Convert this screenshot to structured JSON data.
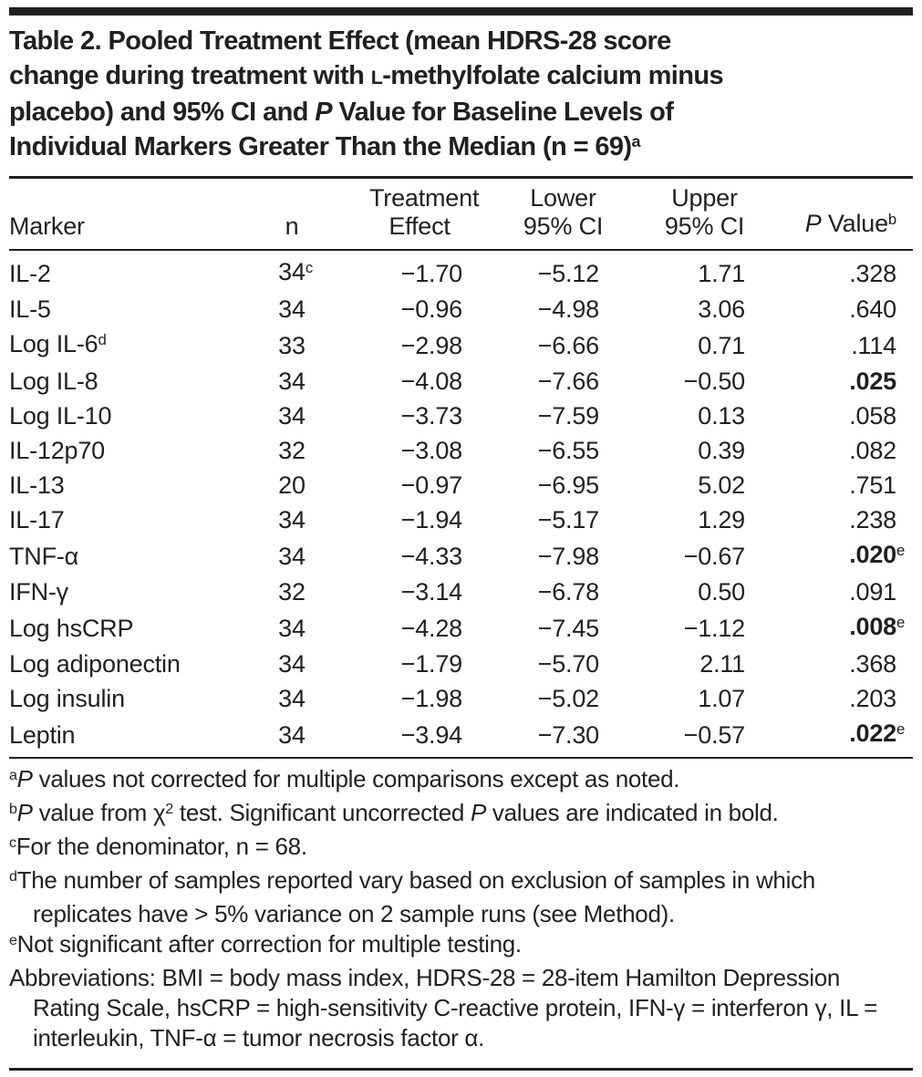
{
  "colors": {
    "text": "#231f20",
    "background": "#ffffff",
    "rule": "#231f20"
  },
  "title": {
    "line1": "Table 2. Pooled Treatment Effect (mean HDRS-28 score",
    "line2_pre": "change during treatment with ",
    "line2_smallcap": "L",
    "line2_post": "-methylfolate calcium minus",
    "line3_pre": "placebo) and 95% CI and ",
    "line3_italic": "P",
    "line3_post": " Value for Baseline Levels of",
    "line4": "Individual Markers Greater Than the Median (n = 69)",
    "line4_sup": "a"
  },
  "table": {
    "headers": {
      "marker": "Marker",
      "n": "n",
      "treatment_line1": "Treatment",
      "treatment_line2": "Effect",
      "lower_line1": "Lower",
      "lower_line2": "95% CI",
      "upper_line1": "Upper",
      "upper_line2": "95% CI",
      "pvalue_italic": "P",
      "pvalue_text": " Value",
      "pvalue_sup": "b"
    },
    "rows": [
      {
        "marker": "IL-2",
        "n": "34",
        "n_sup": "c",
        "effect": "−1.70",
        "lower": "−5.12",
        "upper": "1.71",
        "p": ".328",
        "p_bold": false
      },
      {
        "marker": "IL-5",
        "n": "34",
        "effect": "−0.96",
        "lower": "−4.98",
        "upper": "3.06",
        "p": ".640",
        "p_bold": false
      },
      {
        "marker": "Log IL-6",
        "marker_sup": "d",
        "n": "33",
        "effect": "−2.98",
        "lower": "−6.66",
        "upper": "0.71",
        "p": ".114",
        "p_bold": false
      },
      {
        "marker": "Log IL-8",
        "n": "34",
        "effect": "−4.08",
        "lower": "−7.66",
        "upper": "−0.50",
        "p": ".025",
        "p_bold": true
      },
      {
        "marker": "Log IL-10",
        "n": "34",
        "effect": "−3.73",
        "lower": "−7.59",
        "upper": "0.13",
        "p": ".058",
        "p_bold": false
      },
      {
        "marker": "IL-12p70",
        "n": "32",
        "effect": "−3.08",
        "lower": "−6.55",
        "upper": "0.39",
        "p": ".082",
        "p_bold": false
      },
      {
        "marker": "IL-13",
        "n": "20",
        "effect": "−0.97",
        "lower": "−6.95",
        "upper": "5.02",
        "p": ".751",
        "p_bold": false
      },
      {
        "marker": "IL-17",
        "n": "34",
        "effect": "−1.94",
        "lower": "−5.17",
        "upper": "1.29",
        "p": ".238",
        "p_bold": false
      },
      {
        "marker": "TNF-α",
        "n": "34",
        "effect": "−4.33",
        "lower": "−7.98",
        "upper": "−0.67",
        "p": ".020",
        "p_sup": "e",
        "p_bold": true
      },
      {
        "marker": "IFN-γ",
        "n": "32",
        "effect": "−3.14",
        "lower": "−6.78",
        "upper": "0.50",
        "p": ".091",
        "p_bold": false
      },
      {
        "marker": "Log hsCRP",
        "n": "34",
        "effect": "−4.28",
        "lower": "−7.45",
        "upper": "−1.12",
        "p": ".008",
        "p_sup": "e",
        "p_bold": true
      },
      {
        "marker": "Log adiponectin",
        "n": "34",
        "effect": "−1.79",
        "lower": "−5.70",
        "upper": "2.11",
        "p": ".368",
        "p_bold": false
      },
      {
        "marker": "Log insulin",
        "n": "34",
        "effect": "−1.98",
        "lower": "−5.02",
        "upper": "1.07",
        "p": ".203",
        "p_bold": false
      },
      {
        "marker": "Leptin",
        "n": "34",
        "effect": "−3.94",
        "lower": "−7.30",
        "upper": "−0.57",
        "p": ".022",
        "p_sup": "e",
        "p_bold": true
      }
    ]
  },
  "footnotes": {
    "a": {
      "sup": "a",
      "italic_p": "P",
      "text": " values not corrected for multiple comparisons except as noted."
    },
    "b": {
      "sup": "b",
      "italic_p1": "P",
      "text1": " value from χ",
      "sup2": "2",
      "text2": " test. Significant uncorrected ",
      "italic_p2": "P",
      "text3": " values are indicated in bold."
    },
    "c": {
      "sup": "c",
      "text": "For the denominator, n = 68."
    },
    "d": {
      "sup": "d",
      "text": "The number of samples reported vary based on exclusion of samples in which replicates have > 5% variance on 2 sample runs (see Method)."
    },
    "e": {
      "sup": "e",
      "text": "Not significant after correction for multiple testing."
    },
    "abbreviations": "Abbreviations: BMI = body mass index, HDRS-28 = 28-item Hamilton Depression Rating Scale, hsCRP = high-sensitivity C-reactive protein, IFN-γ = interferon γ, IL = interleukin, TNF-α = tumor necrosis factor α."
  }
}
